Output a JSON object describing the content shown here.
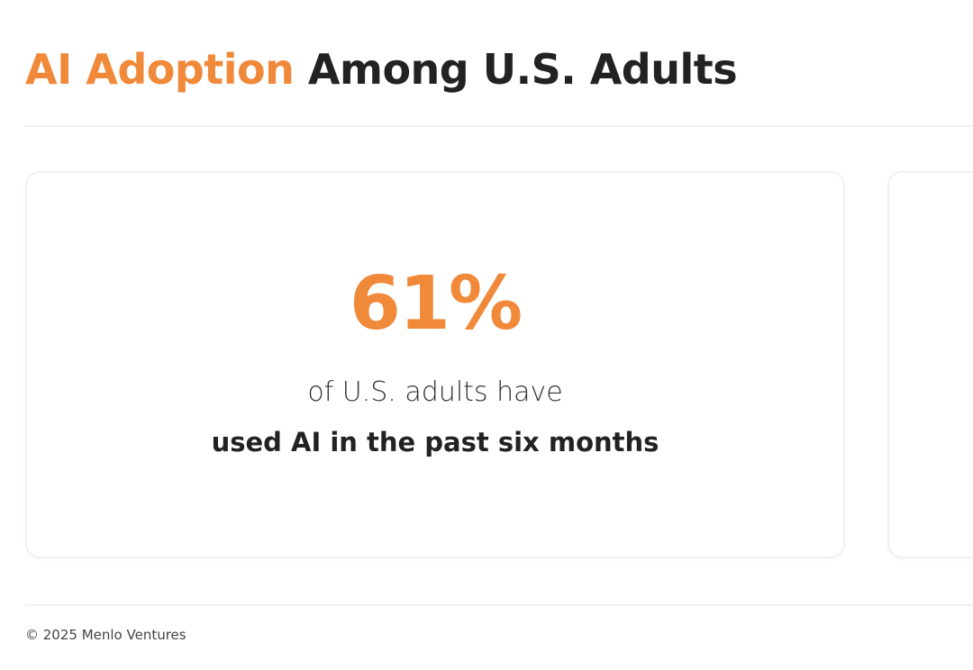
{
  "header": {
    "title_highlight": "AI Adoption",
    "title_rest": "Among U.S. Adults"
  },
  "stat_card": {
    "stat": "61%",
    "line1": "of U.S. adults have",
    "line2": "used AI in the past six months"
  },
  "footer": {
    "copyright": "© 2025 Menlo Ventures"
  }
}
